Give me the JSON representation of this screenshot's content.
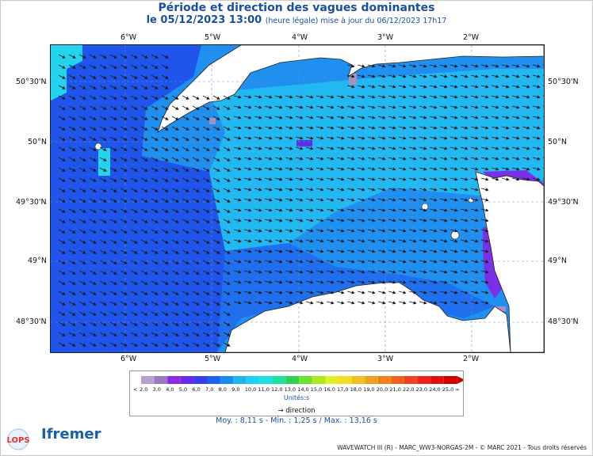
{
  "title": "Période et direction des vagues dominantes",
  "subtitle_date": "le 05/12/2023 13:00",
  "subtitle_note": "(heure légale) mise à jour du 06/12/2023 17h17",
  "lon_ticks": [
    "6°W",
    "5°W",
    "4°W",
    "3°W",
    "2°W"
  ],
  "lat_ticks": [
    "50°30'N",
    "50°N",
    "49°30'N",
    "49°N",
    "48°30'N"
  ],
  "scale": {
    "low_label": "<",
    "high_label": "∞",
    "labels": [
      "2,0",
      "3,0",
      "4,0",
      "5,0",
      "6,0",
      "7,0",
      "8,0",
      "9,0",
      "10,0",
      "11,0",
      "12,0",
      "13,0",
      "14,0",
      "15,0",
      "16,0",
      "17,0",
      "18,0",
      "19,0",
      "20,0",
      "21,0",
      "22,0",
      "23,0",
      "24,0",
      "25,0"
    ],
    "colors": [
      "#b8a0c8",
      "#9a78c0",
      "#8a2be2",
      "#6a28f0",
      "#3a3cf0",
      "#2060f0",
      "#1a8cf0",
      "#20b4f0",
      "#20d0f0",
      "#20e0e0",
      "#20e0a0",
      "#30d050",
      "#70e030",
      "#b0e820",
      "#e0f020",
      "#f0e020",
      "#f0c020",
      "#f0a020",
      "#f08020",
      "#f06020",
      "#f04020",
      "#f02020",
      "#e01010",
      "#d00000"
    ],
    "unit_label": "Unités:s",
    "direction_label": "direction"
  },
  "stats": "Moy. : 8,11 s  -   Min. : 1,25 s / Max. : 13,16 s",
  "logos": {
    "lops": "LOPS",
    "ifremer": "Ifremer"
  },
  "footer": "WAVEWATCH III (R) - MARC_WW3-NORGAS-2M - © MARC 2021 - Tous droits réservés",
  "colors": {
    "land": "#ffffff",
    "sea_deep": "#1f55ea",
    "sea_mid": "#1f8ff0",
    "sea_light": "#22b8f2",
    "sea_cyan": "#22d4ee",
    "short_period": "#7a30e6",
    "very_short": "#a890c0",
    "title": "#1a4fa0"
  }
}
